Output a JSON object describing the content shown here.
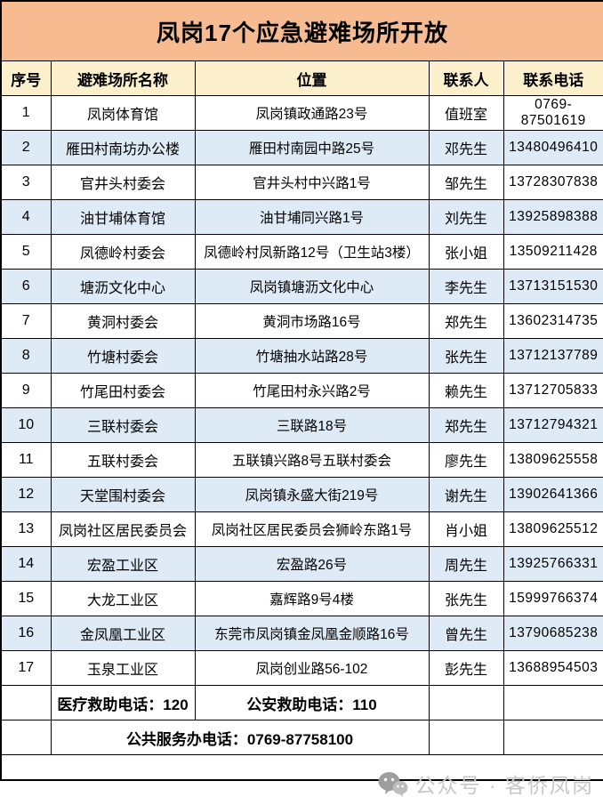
{
  "title": "凤岗17个应急避难场所开放",
  "columns": [
    "序号",
    "避难场所名称",
    "位置",
    "联系人",
    "联系电话"
  ],
  "rows": [
    {
      "no": "1",
      "name": "凤岗体育馆",
      "location": "凤岗镇政通路23号",
      "contact": "值班室",
      "phone": "0769-87501619"
    },
    {
      "no": "2",
      "name": "雁田村南坊办公楼",
      "location": "雁田村南园中路25号",
      "contact": "邓先生",
      "phone": "13480496410"
    },
    {
      "no": "3",
      "name": "官井头村委会",
      "location": "官井头村中兴路1号",
      "contact": "邹先生",
      "phone": "13728307838"
    },
    {
      "no": "4",
      "name": "油甘埔体育馆",
      "location": "油甘埔同兴路1号",
      "contact": "刘先生",
      "phone": "13925898388"
    },
    {
      "no": "5",
      "name": "凤德岭村委会",
      "location": "凤德岭村凤新路12号（卫生站3楼）",
      "contact": "张小姐",
      "phone": "13509211428"
    },
    {
      "no": "6",
      "name": "塘沥文化中心",
      "location": "凤岗镇塘沥文化中心",
      "contact": "李先生",
      "phone": "13713151530"
    },
    {
      "no": "7",
      "name": "黄洞村委会",
      "location": "黄洞市场路16号",
      "contact": "郑先生",
      "phone": "13602314735"
    },
    {
      "no": "8",
      "name": "竹塘村委会",
      "location": "竹塘抽水站路28号",
      "contact": "张先生",
      "phone": "13712137789"
    },
    {
      "no": "9",
      "name": "竹尾田村委会",
      "location": "竹尾田村永兴路2号",
      "contact": "赖先生",
      "phone": "13712705833"
    },
    {
      "no": "10",
      "name": "三联村委会",
      "location": "三联路18号",
      "contact": "郑先生",
      "phone": "13712794321"
    },
    {
      "no": "11",
      "name": "五联村委会",
      "location": "五联镇兴路8号五联村委会",
      "contact": "廖先生",
      "phone": "13809625558"
    },
    {
      "no": "12",
      "name": "天堂围村委会",
      "location": "凤岗镇永盛大街219号",
      "contact": "谢先生",
      "phone": "13902641366"
    },
    {
      "no": "13",
      "name": "凤岗社区居民委员会",
      "location": "凤岗社区居民委员会狮岭东路1号",
      "contact": "肖小姐",
      "phone": "13809625512"
    },
    {
      "no": "14",
      "name": "宏盈工业区",
      "location": "宏盈路26号",
      "contact": "周先生",
      "phone": "13925766331"
    },
    {
      "no": "15",
      "name": "大龙工业区",
      "location": "嘉辉路9号4楼",
      "contact": "张先生",
      "phone": "15999766374"
    },
    {
      "no": "16",
      "name": "金凤凰工业区",
      "location": "东莞市凤岗镇金凤凰金顺路16号",
      "contact": "曾先生",
      "phone": "13790685238"
    },
    {
      "no": "17",
      "name": "玉泉工业区",
      "location": "凤岗创业路56-102",
      "contact": "彭先生",
      "phone": "13688954503"
    }
  ],
  "footer": {
    "medical": "医疗救助电话：120",
    "police": "公安救助电话：110",
    "public_service": "公共服务办电话：0769-87758100"
  },
  "watermark": {
    "icon": "wechat-icon",
    "label": "公众号 · 客侨凤岗"
  },
  "colors": {
    "title_bg": "#F6BB90",
    "header_bg": "#FBF0CB",
    "header_text": "#7F6000",
    "row_alt_bg": "#DEEAF6",
    "border": "#000000",
    "watermark_text": "#C7C7C7"
  }
}
